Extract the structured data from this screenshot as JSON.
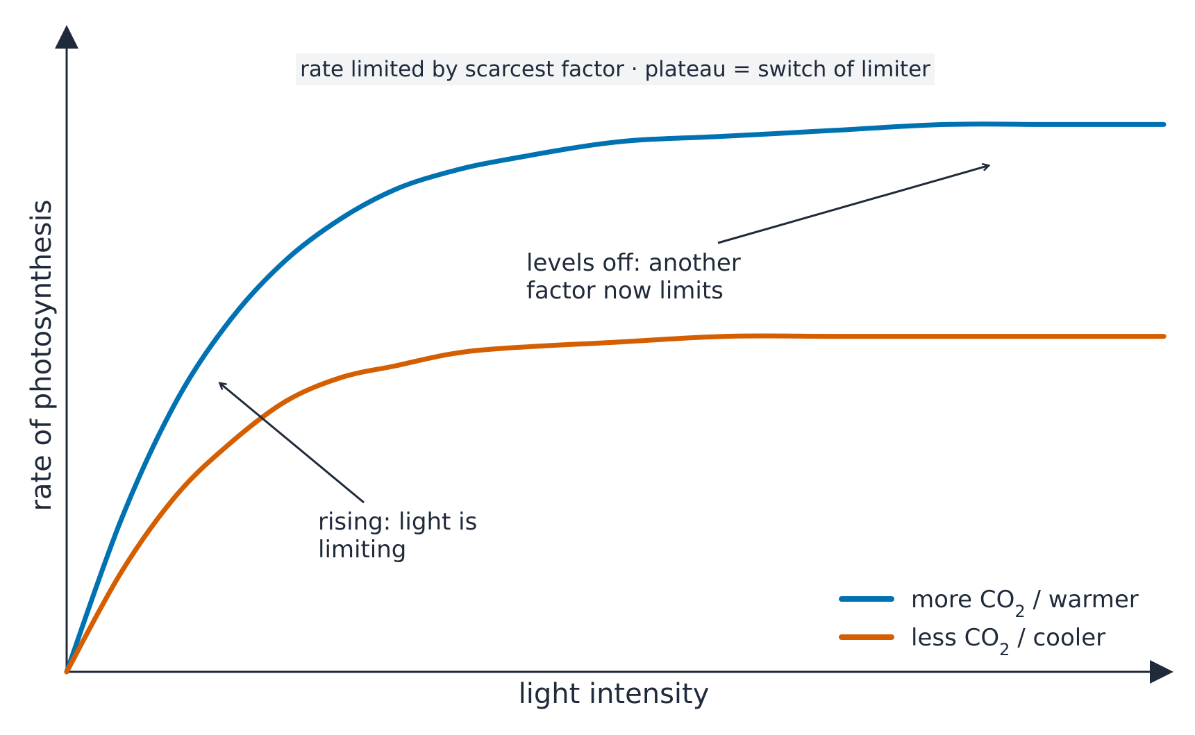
{
  "chart_data": {
    "type": "line",
    "title": "",
    "subtitle": "rate limited by scarcest factor  ·  plateau = switch of limiter",
    "xlabel": "light intensity",
    "ylabel": "rate of photosynthesis",
    "xlim": [
      0,
      1
    ],
    "ylim": [
      0,
      1
    ],
    "ticks_shown": false,
    "grid": false,
    "legend_position": "bottom-right",
    "series": [
      {
        "name_parts": [
          "more CO",
          "2",
          " / warmer"
        ],
        "color": "#0072b2",
        "x": [
          0.0,
          0.05,
          0.1,
          0.15,
          0.2,
          0.25,
          0.3,
          0.35,
          0.4,
          0.5,
          0.6,
          0.7,
          0.8,
          0.9,
          1.0
        ],
        "y": [
          0.0,
          0.26,
          0.46,
          0.6,
          0.7,
          0.77,
          0.82,
          0.85,
          0.87,
          0.9,
          0.91,
          0.92,
          0.93,
          0.93,
          0.93
        ]
      },
      {
        "name_parts": [
          "less CO",
          "2",
          " / cooler"
        ],
        "color": "#d55e00",
        "x": [
          0.0,
          0.05,
          0.1,
          0.15,
          0.2,
          0.25,
          0.3,
          0.35,
          0.4,
          0.5,
          0.6,
          0.7,
          0.8,
          0.9,
          1.0
        ],
        "y": [
          0.0,
          0.17,
          0.3,
          0.39,
          0.46,
          0.5,
          0.52,
          0.54,
          0.55,
          0.56,
          0.57,
          0.57,
          0.57,
          0.57,
          0.57
        ]
      }
    ],
    "annotations": [
      {
        "lines": [
          "levels off: another",
          "factor now limits"
        ],
        "target_x": 0.84,
        "target_y": 0.86
      },
      {
        "lines": [
          "rising: light is",
          "limiting"
        ],
        "target_x": 0.14,
        "target_y": 0.49
      }
    ]
  },
  "colors": {
    "axis": "#1f2a3a",
    "text": "#1f2a3a",
    "subtitle_background": "#f3f4f6"
  }
}
